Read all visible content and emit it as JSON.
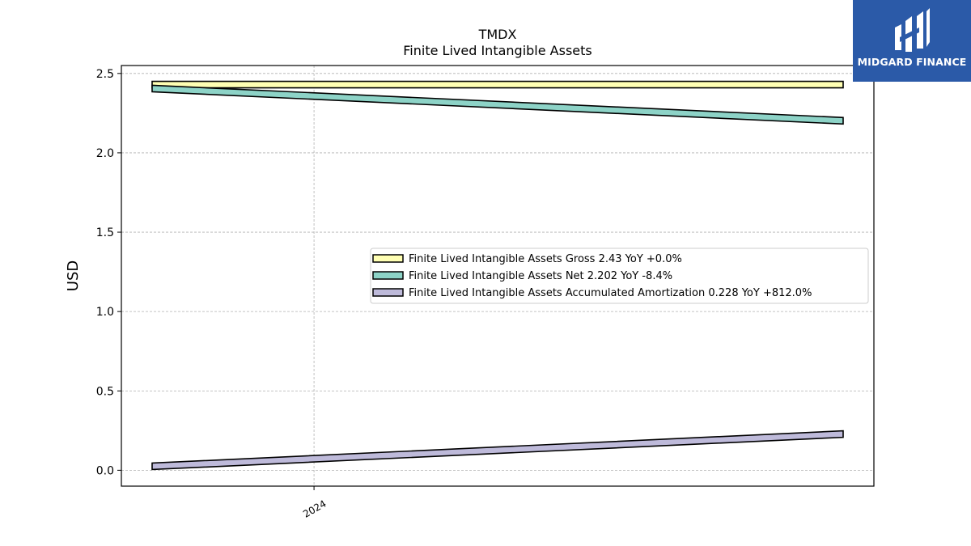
{
  "chart_data": {
    "type": "line",
    "title": "TMDX",
    "subtitle": "Finite Lived Intangible Assets",
    "ylabel": "USD",
    "xlabel": "",
    "ylim": [
      -0.1,
      2.55
    ],
    "yticks": [
      0.0,
      0.5,
      1.0,
      1.5,
      2.0,
      2.5
    ],
    "ytick_labels": [
      "0.0",
      "0.5",
      "1.0",
      "1.5",
      "2.0",
      "2.5"
    ],
    "xticks": [
      {
        "label": "2024",
        "position": 0.256
      }
    ],
    "grid": true,
    "legend_placement": "center-right",
    "series": [
      {
        "name": "Finite Lived Intangible Assets Gross",
        "legend": "Finite Lived Intangible Assets Gross  2.43 YoY +0.0%",
        "color": "#ffffb3",
        "values": [
          2.43,
          2.43
        ]
      },
      {
        "name": "Finite Lived Intangible Assets Net",
        "legend": "Finite Lived Intangible Assets Net  2.202 YoY -8.4%",
        "color": "#8dd3c7",
        "values": [
          2.405,
          2.202
        ]
      },
      {
        "name": "Finite Lived Intangible Assets Accumulated Amortization",
        "legend": "Finite Lived Intangible Assets Accumulated Amortization  0.228 YoY +812.0%",
        "color": "#bebada",
        "values": [
          0.025,
          0.228
        ]
      }
    ]
  },
  "logo": {
    "text": "MIDGARD FINANCE"
  }
}
